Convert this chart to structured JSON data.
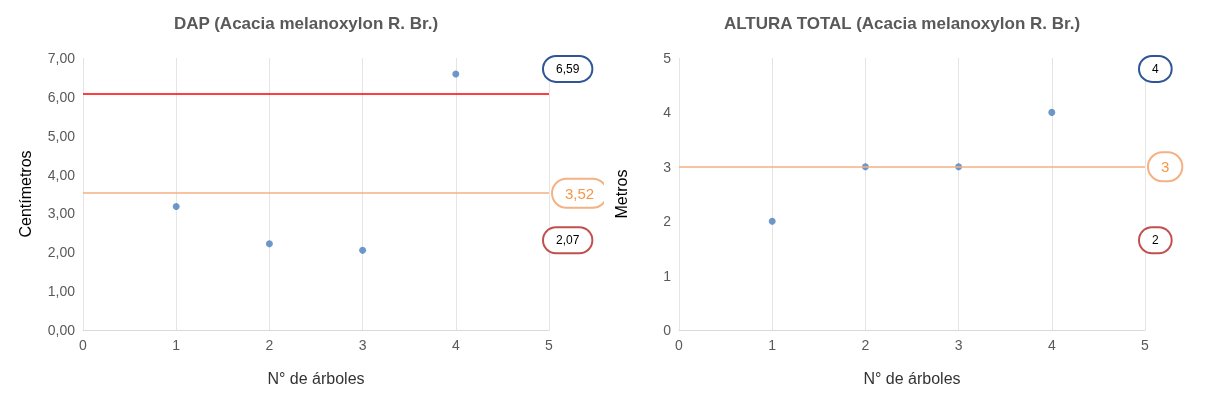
{
  "chart_data": [
    {
      "type": "scatter",
      "title": "DAP (Acacia melanoxylon R. Br.)",
      "xlabel": "N° de árboles",
      "ylabel": "Centímetros",
      "series": [
        {
          "color": "#4a7ebb",
          "x": [
            1,
            2,
            3,
            4
          ],
          "values": [
            3.18,
            2.22,
            2.05,
            6.59
          ]
        }
      ],
      "xlim": [
        0,
        5
      ],
      "xticks": [
        0,
        1,
        2,
        3,
        4,
        5
      ],
      "ylim": [
        0,
        7
      ],
      "yticks": [
        {
          "value": 0,
          "label": "0,00"
        },
        {
          "value": 1,
          "label": "1,00"
        },
        {
          "value": 2,
          "label": "2,00"
        },
        {
          "value": 3,
          "label": "3,00"
        },
        {
          "value": 4,
          "label": "4,00"
        },
        {
          "value": 5,
          "label": "5,00"
        },
        {
          "value": 6,
          "label": "6,00"
        },
        {
          "value": 7,
          "label": "7,00"
        }
      ],
      "ref_lines": [
        {
          "axis": "y",
          "value": 6.07,
          "color": "#ff0000"
        },
        {
          "axis": "y",
          "value": 3.52,
          "label": "3,52",
          "color": "#f4b183"
        }
      ],
      "annotations": [
        "6,59",
        "2,07"
      ],
      "grid": "x",
      "marker": "circle"
    },
    {
      "type": "scatter",
      "title": "ALTURA TOTAL (Acacia melanoxylon R. Br.)",
      "xlabel": "N° de árboles",
      "ylabel": "Metros",
      "series": [
        {
          "color": "#4a7ebb",
          "x": [
            1,
            2,
            3,
            4
          ],
          "values": [
            2,
            3,
            3,
            4
          ]
        }
      ],
      "xlim": [
        0,
        5
      ],
      "xticks": [
        0,
        1,
        2,
        3,
        4,
        5
      ],
      "ylim": [
        0,
        5
      ],
      "yticks": [
        0,
        1,
        2,
        3,
        4,
        5
      ],
      "ref_lines": [
        {
          "axis": "y",
          "value": 3,
          "label": "3",
          "color": "#f4b183"
        }
      ],
      "annotations": [
        "4",
        "2"
      ],
      "grid": "x",
      "marker": "circle"
    }
  ]
}
